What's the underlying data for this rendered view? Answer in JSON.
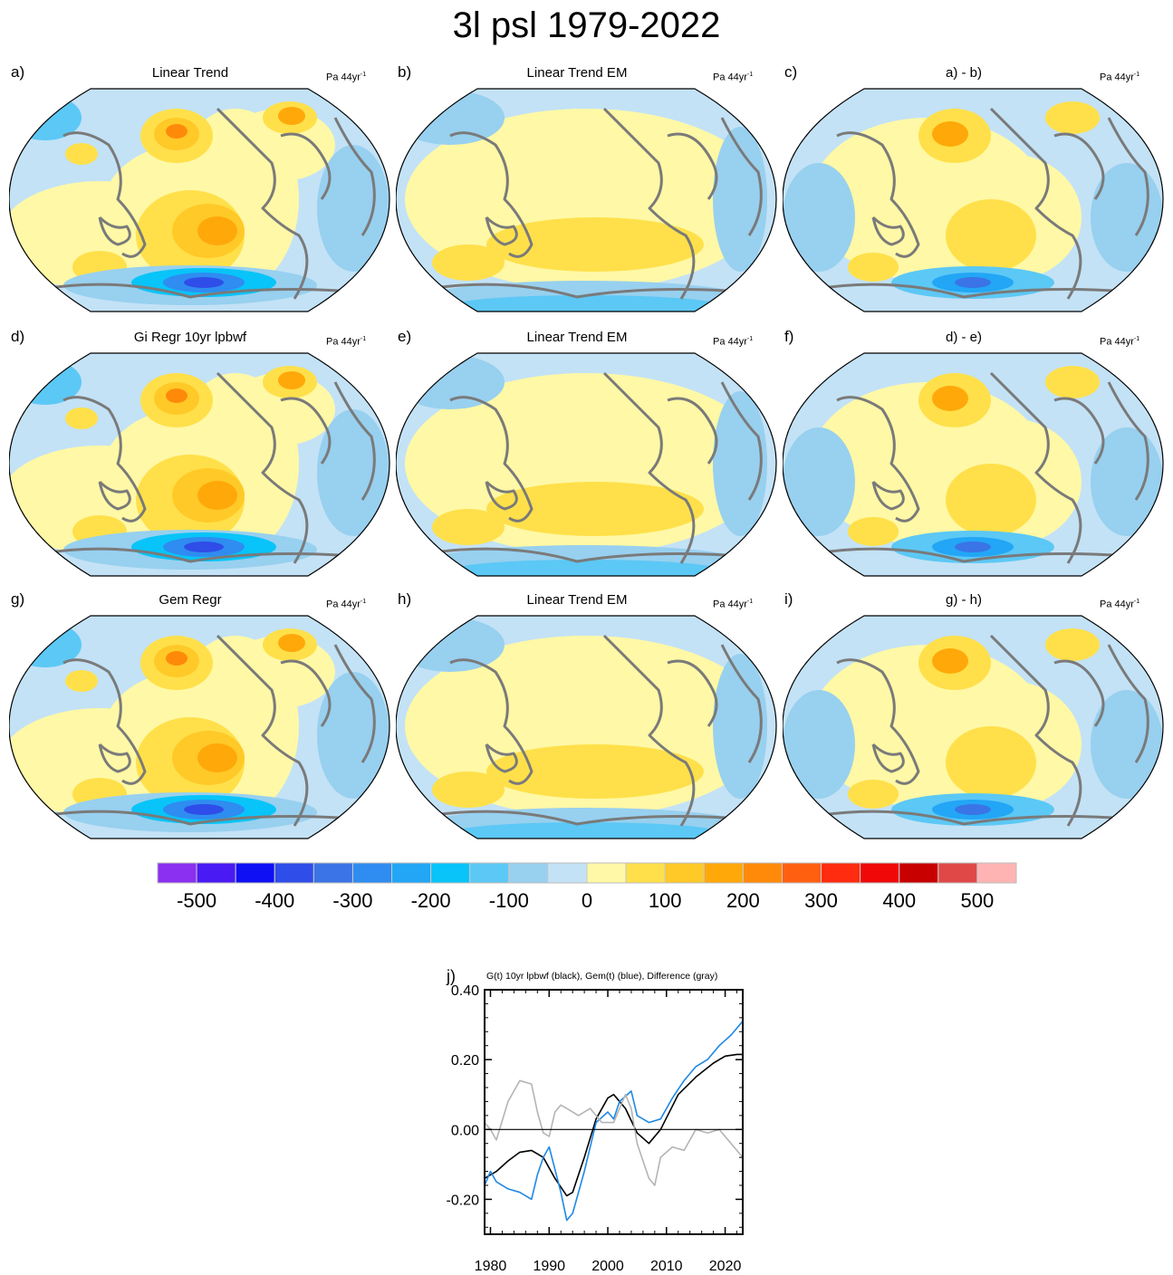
{
  "title": "3l psl 1979-2022",
  "units": "Pa 44yr",
  "units_sup": "-1",
  "panels": [
    {
      "letter": "a)",
      "title": "Linear Trend"
    },
    {
      "letter": "b)",
      "title": "Linear Trend EM"
    },
    {
      "letter": "c)",
      "title": "a) - b)"
    },
    {
      "letter": "d)",
      "title": "Gi Regr 10yr lpbwf"
    },
    {
      "letter": "e)",
      "title": "Linear Trend EM"
    },
    {
      "letter": "f)",
      "title": "d) - e)"
    },
    {
      "letter": "g)",
      "title": "Gem Regr"
    },
    {
      "letter": "h)",
      "title": "Linear Trend EM"
    },
    {
      "letter": "i)",
      "title": "g) - h)"
    }
  ],
  "colorbar": {
    "colors": [
      "#8b2ff0",
      "#4a1af5",
      "#1010f5",
      "#2f4de8",
      "#3a74e6",
      "#2f8cf0",
      "#22a6f5",
      "#08c4f8",
      "#5cc8f5",
      "#98d0ef",
      "#c3e2f6",
      "#fff8a6",
      "#ffe04a",
      "#ffc928",
      "#ffa80a",
      "#ff8a0a",
      "#ff6010",
      "#ff2c10",
      "#f00808",
      "#c80000",
      "#e04848",
      "#ffb4b4"
    ],
    "tick_labels": [
      "-500",
      "-400",
      "-300",
      "-200",
      "-100",
      "0",
      "100",
      "200",
      "300",
      "400",
      "500"
    ]
  },
  "chart_data": {
    "type": "line",
    "panel_label": "j)",
    "title": "G(t)  10yr lpbwf (black), Gem(t) (blue), Difference (gray)",
    "xlabel": "",
    "ylabel": "",
    "xlim": [
      1979,
      2023
    ],
    "ylim": [
      -0.3,
      0.4
    ],
    "xticks": [
      "1980",
      "1990",
      "2000",
      "2010",
      "2020"
    ],
    "yticks": [
      "-0.20",
      "0.00",
      "0.20",
      "0.40"
    ],
    "series": [
      {
        "color": "#000000",
        "x": [
          1979,
          1981,
          1983,
          1985,
          1987,
          1989,
          1991,
          1993,
          1994,
          1996,
          1998,
          2000,
          2001,
          2003,
          2005,
          2007,
          2009,
          2012,
          2015,
          2018,
          2020,
          2022,
          2023
        ],
        "values": [
          -0.14,
          -0.12,
          -0.09,
          -0.065,
          -0.06,
          -0.08,
          -0.14,
          -0.19,
          -0.18,
          -0.08,
          0.03,
          0.09,
          0.1,
          0.06,
          -0.01,
          -0.04,
          0.0,
          0.1,
          0.15,
          0.19,
          0.21,
          0.215,
          0.215
        ]
      },
      {
        "color": "#1f88e5",
        "x": [
          1979,
          1980,
          1981,
          1983,
          1985,
          1987,
          1988,
          1989,
          1990,
          1992,
          1993,
          1994,
          1996,
          1998,
          2000,
          2001,
          2002,
          2004,
          2005,
          2007,
          2009,
          2011,
          2013,
          2015,
          2017,
          2019,
          2021,
          2023
        ],
        "values": [
          -0.16,
          -0.12,
          -0.15,
          -0.17,
          -0.18,
          -0.2,
          -0.13,
          -0.08,
          -0.05,
          -0.18,
          -0.26,
          -0.24,
          -0.12,
          0.02,
          0.05,
          0.03,
          0.08,
          0.11,
          0.04,
          0.02,
          0.03,
          0.09,
          0.14,
          0.18,
          0.2,
          0.24,
          0.27,
          0.31
        ]
      },
      {
        "color": "#b4b4b4",
        "x": [
          1979,
          1980,
          1981,
          1983,
          1985,
          1987,
          1988,
          1989,
          1990,
          1991,
          1992,
          1993,
          1995,
          1997,
          1999,
          2001,
          2002,
          2003,
          2004,
          2005,
          2007,
          2008,
          2009,
          2011,
          2013,
          2015,
          2017,
          2019,
          2021,
          2023
        ],
        "values": [
          0.02,
          0.0,
          -0.03,
          0.08,
          0.14,
          0.13,
          0.05,
          -0.01,
          -0.02,
          0.05,
          0.07,
          0.06,
          0.04,
          0.06,
          0.02,
          0.02,
          0.06,
          0.1,
          0.06,
          -0.04,
          -0.14,
          -0.16,
          -0.08,
          -0.05,
          -0.06,
          0.0,
          -0.01,
          0.0,
          -0.04,
          -0.08
        ]
      },
      {
        "color": "#000000",
        "x": [
          1979,
          2023
        ],
        "values": [
          0,
          0
        ]
      }
    ]
  }
}
